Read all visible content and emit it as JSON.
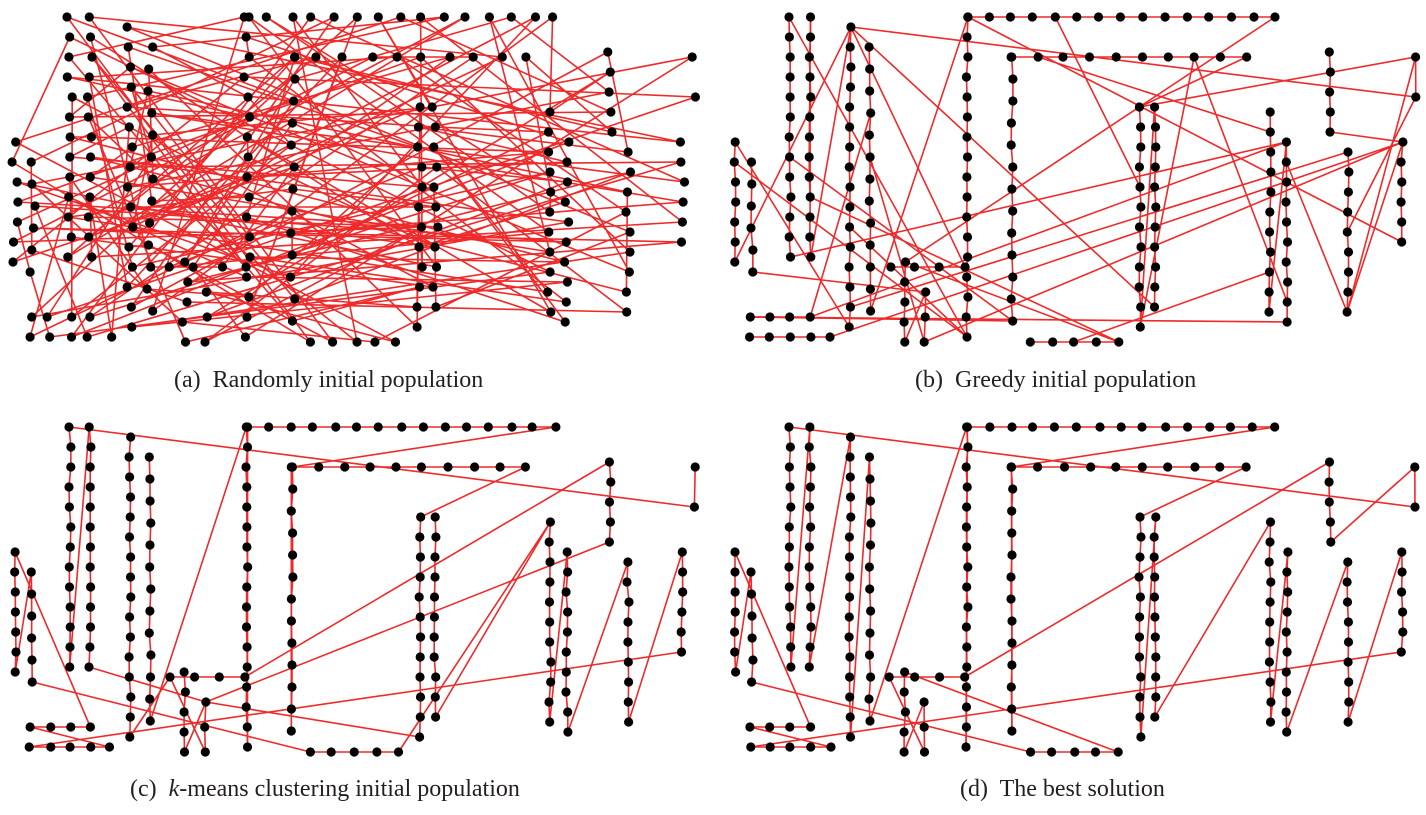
{
  "figure": {
    "colors": {
      "edge": "#ee2a2a",
      "node": "#000000",
      "text": "#231f20"
    },
    "panels": [
      {
        "id": "a",
        "caption_tag": "(a)",
        "caption_text": "Randomly initial population",
        "style": "random"
      },
      {
        "id": "b",
        "caption_tag": "(b)",
        "caption_text": "Greedy initial population",
        "style": "greedy"
      },
      {
        "id": "c",
        "caption_tag": "(c)",
        "caption_italic": "k",
        "caption_text": "-means clustering initial population",
        "style": "kmeans"
      },
      {
        "id": "d",
        "caption_tag": "(d)",
        "caption_text": "The best solution",
        "style": "best"
      }
    ]
  }
}
